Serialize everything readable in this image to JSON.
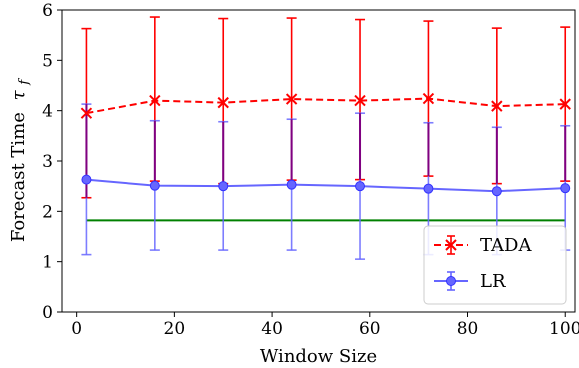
{
  "chart_data": {
    "type": "line",
    "title": "",
    "xlabel": "Window Size",
    "ylabel": "Forecast Time",
    "ylabel_symbol": "τ",
    "ylabel_subscript": "f",
    "xlim": [
      -3,
      102
    ],
    "ylim": [
      0,
      6
    ],
    "x_ticks": [
      "0",
      "20",
      "40",
      "60",
      "80",
      "100"
    ],
    "x_tick_values": [
      0,
      20,
      40,
      60,
      80,
      100
    ],
    "y_ticks": [
      "0",
      "1",
      "2",
      "3",
      "4",
      "5",
      "6"
    ],
    "y_tick_values": [
      0,
      1,
      2,
      3,
      4,
      5,
      6
    ],
    "grid": false,
    "legend_position": "lower-right",
    "x": [
      2,
      16,
      30,
      44,
      58,
      72,
      86,
      100
    ],
    "series": [
      {
        "name": "TADA",
        "color": "#ff0000",
        "marker": "x",
        "line_style": "dashed",
        "values": [
          3.95,
          4.2,
          4.16,
          4.23,
          4.2,
          4.24,
          4.09,
          4.13
        ],
        "err_low": [
          2.27,
          2.6,
          2.55,
          2.62,
          2.63,
          2.7,
          2.55,
          2.6
        ],
        "err_high": [
          5.63,
          5.86,
          5.83,
          5.84,
          5.81,
          5.78,
          5.64,
          5.66
        ]
      },
      {
        "name": "LR",
        "color": "#6666ff",
        "marker": "o",
        "line_style": "solid",
        "values": [
          2.63,
          2.51,
          2.5,
          2.53,
          2.5,
          2.45,
          2.4,
          2.46
        ],
        "err_low": [
          1.14,
          1.23,
          1.23,
          1.23,
          1.05,
          1.14,
          1.14,
          1.23
        ],
        "err_high": [
          4.13,
          3.8,
          3.78,
          3.83,
          3.95,
          3.76,
          3.67,
          3.7
        ]
      }
    ],
    "reference_line": {
      "color": "#008000",
      "value": 1.82,
      "x_start": 2,
      "x_end": 100
    },
    "overlap_color": "#7f0080"
  }
}
